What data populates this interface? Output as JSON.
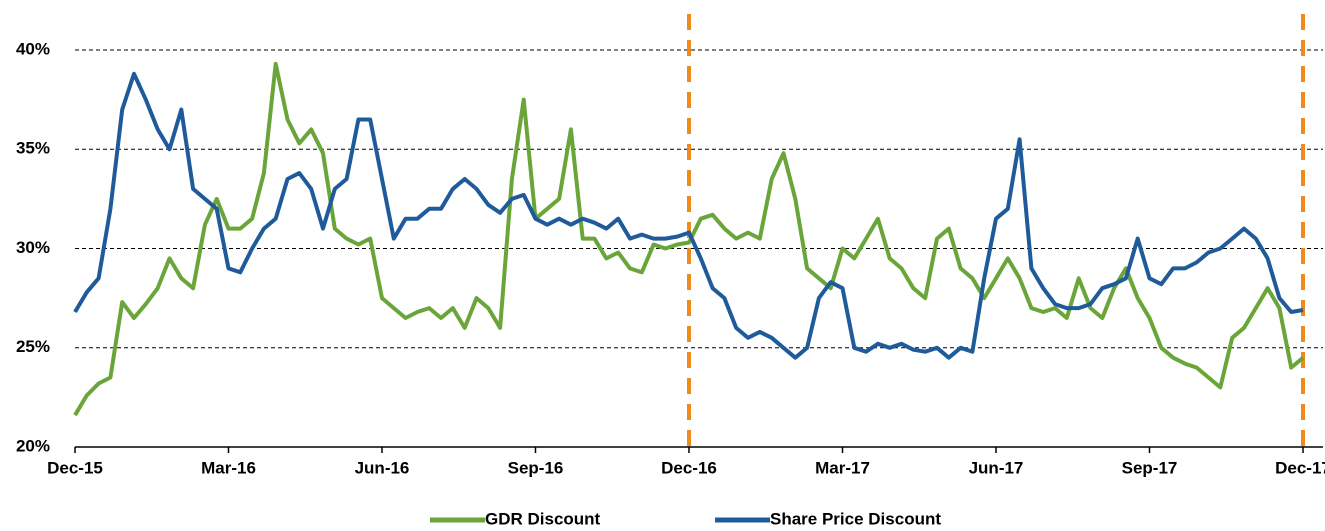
{
  "chart_data": {
    "type": "line",
    "categories": [
      "Dec-15",
      null,
      null,
      null,
      null,
      null,
      null,
      null,
      null,
      null,
      null,
      null,
      null,
      "Mar-16",
      null,
      null,
      null,
      null,
      null,
      null,
      null,
      null,
      null,
      null,
      null,
      null,
      "Jun-16",
      null,
      null,
      null,
      null,
      null,
      null,
      null,
      null,
      null,
      null,
      null,
      null,
      "Sep-16",
      null,
      null,
      null,
      null,
      null,
      null,
      null,
      null,
      null,
      null,
      null,
      null,
      "Dec-16",
      null,
      null,
      null,
      null,
      null,
      null,
      null,
      null,
      null,
      null,
      null,
      null,
      "Mar-17",
      null,
      null,
      null,
      null,
      null,
      null,
      null,
      null,
      null,
      null,
      null,
      null,
      "Jun-17",
      null,
      null,
      null,
      null,
      null,
      null,
      null,
      null,
      null,
      null,
      null,
      null,
      "Sep-17",
      null,
      null,
      null,
      null,
      null,
      null,
      null,
      null,
      null,
      null,
      null,
      null,
      "Dec-17"
    ],
    "series": [
      {
        "name": "GDR Discount",
        "color": "#6aa53a",
        "values": [
          21.6,
          22.6,
          23.2,
          23.5,
          27.3,
          26.5,
          27.2,
          28,
          29.5,
          28.5,
          28,
          31.2,
          32.5,
          31,
          31,
          31.5,
          33.8,
          39.3,
          36.5,
          35.3,
          36,
          34.8,
          31,
          30.5,
          30.2,
          30.5,
          27.5,
          27,
          26.5,
          26.8,
          27,
          26.5,
          27,
          26,
          27.5,
          27,
          26,
          33.5,
          37.5,
          31.5,
          32,
          32.5,
          36,
          30.5,
          30.5,
          29.5,
          29.8,
          29,
          28.8,
          30.2,
          30,
          30.2,
          30.3,
          31.5,
          31.7,
          31,
          30.5,
          30.8,
          30.5,
          33.5,
          34.8,
          32.5,
          29,
          28.5,
          28,
          30,
          29.5,
          30.5,
          31.5,
          29.5,
          29,
          28,
          27.5,
          30.5,
          31,
          29,
          28.5,
          27.5,
          28.5,
          29.5,
          28.5,
          27,
          26.8,
          27,
          26.5,
          28.5,
          27,
          26.5,
          28,
          29,
          27.5,
          26.5,
          25,
          24.5,
          24.2,
          24,
          23.5,
          23,
          25.5,
          26,
          27,
          28,
          27,
          24,
          24.5
        ]
      },
      {
        "name": "Share Price Discount",
        "color": "#1f5b9a",
        "values": [
          26.8,
          27.8,
          28.5,
          32,
          37,
          38.8,
          37.5,
          36,
          35,
          37,
          33,
          32.5,
          32,
          29,
          28.8,
          30,
          31,
          31.5,
          33.5,
          33.8,
          33,
          31,
          33,
          33.5,
          36.5,
          36.5,
          33.5,
          30.5,
          31.5,
          31.5,
          32,
          32,
          33,
          33.5,
          33,
          32.2,
          31.8,
          32.5,
          32.7,
          31.5,
          31.2,
          31.5,
          31.2,
          31.5,
          31.3,
          31,
          31.5,
          30.5,
          30.7,
          30.5,
          30.5,
          30.6,
          30.8,
          29.5,
          28,
          27.5,
          26,
          25.5,
          25.8,
          25.5,
          25,
          24.5,
          25,
          27.5,
          28.3,
          28,
          25,
          24.8,
          25.2,
          25,
          25.2,
          24.9,
          24.8,
          25,
          24.5,
          25,
          24.8,
          28.5,
          31.5,
          32,
          35.5,
          29,
          28,
          27.2,
          27,
          27,
          27.2,
          28,
          28.2,
          28.5,
          30.5,
          28.5,
          28.2,
          29,
          29,
          29.3,
          29.8,
          30,
          30.5,
          31,
          30.5,
          29.5,
          27.5,
          26.8,
          26.9
        ]
      }
    ],
    "ylim": [
      20,
      40
    ],
    "yticks": [
      {
        "value": 20,
        "label": "20%"
      },
      {
        "value": 25,
        "label": "25%"
      },
      {
        "value": 30,
        "label": "30%"
      },
      {
        "value": 35,
        "label": "35%"
      },
      {
        "value": 40,
        "label": "40%"
      }
    ],
    "grid": true,
    "legend": "bottom",
    "vlines": {
      "at": [
        "Dec-16",
        "Dec-17"
      ],
      "color": "#f08a1c"
    }
  }
}
